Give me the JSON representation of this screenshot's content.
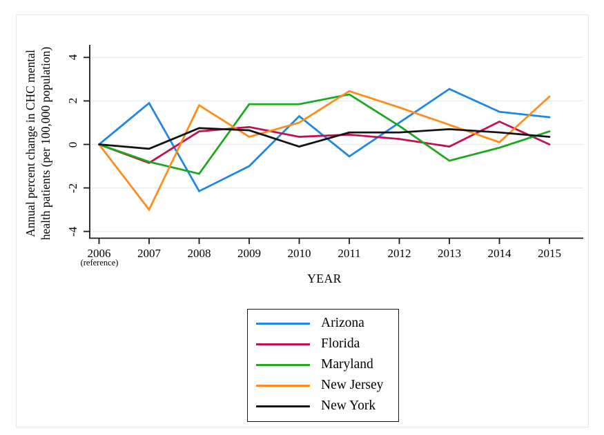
{
  "figure": {
    "y_axis_title_line1": "Annual percent change in CHC mental",
    "y_axis_title_line2": "health patients (per 100,000 population)",
    "x_axis_title": "YEAR",
    "x_reference_note": "(reference)"
  },
  "colors": {
    "gridline": "#e3ecf3",
    "axis": "#1a1a1a",
    "figure_border": "#dde8ee",
    "legend_border": "#111111",
    "arizona": "#1f87e8",
    "florida": "#c2114e",
    "maryland": "#1ea81e",
    "new_jersey": "#ff8d1e",
    "new_york": "#141414"
  },
  "chart_data": {
    "type": "line",
    "title": "",
    "xlabel": "YEAR",
    "ylabel": "Annual percent change in CHC mental health patients (per 100,000 population)",
    "grid": true,
    "legend_position": "bottom-center",
    "x": [
      2006,
      2007,
      2008,
      2009,
      2010,
      2011,
      2012,
      2013,
      2014,
      2015
    ],
    "x_tick_labels": [
      "2006",
      "2007",
      "2008",
      "2009",
      "2010",
      "2011",
      "2012",
      "2013",
      "2014",
      "2015"
    ],
    "x_first_tick_note": "(reference)",
    "y_ticks": [
      4,
      2,
      0,
      -2,
      -4
    ],
    "y_tick_labels": [
      "4",
      "2",
      "0",
      "-2",
      "-4"
    ],
    "ylim": [
      -4.3,
      4.6
    ],
    "series": [
      {
        "name": "Arizona",
        "color": "#1f87e8",
        "values": [
          0,
          1.9,
          -2.15,
          -1.0,
          1.3,
          -0.55,
          1.0,
          2.55,
          1.5,
          1.25
        ]
      },
      {
        "name": "Florida",
        "color": "#c2114e",
        "values": [
          0,
          -0.85,
          0.6,
          0.8,
          0.35,
          0.45,
          0.25,
          -0.1,
          1.05,
          0.0
        ]
      },
      {
        "name": "Maryland",
        "color": "#1ea81e",
        "values": [
          0,
          -0.8,
          -1.35,
          1.85,
          1.85,
          2.3,
          0.85,
          -0.75,
          -0.15,
          0.6
        ]
      },
      {
        "name": "New Jersey",
        "color": "#ff8d1e",
        "values": [
          0,
          -3.0,
          1.8,
          0.35,
          1.0,
          2.45,
          1.7,
          0.9,
          0.1,
          2.2
        ]
      },
      {
        "name": "New York",
        "color": "#141414",
        "values": [
          0,
          -0.2,
          0.75,
          0.65,
          -0.1,
          0.55,
          0.55,
          0.7,
          0.55,
          0.35
        ]
      }
    ]
  }
}
